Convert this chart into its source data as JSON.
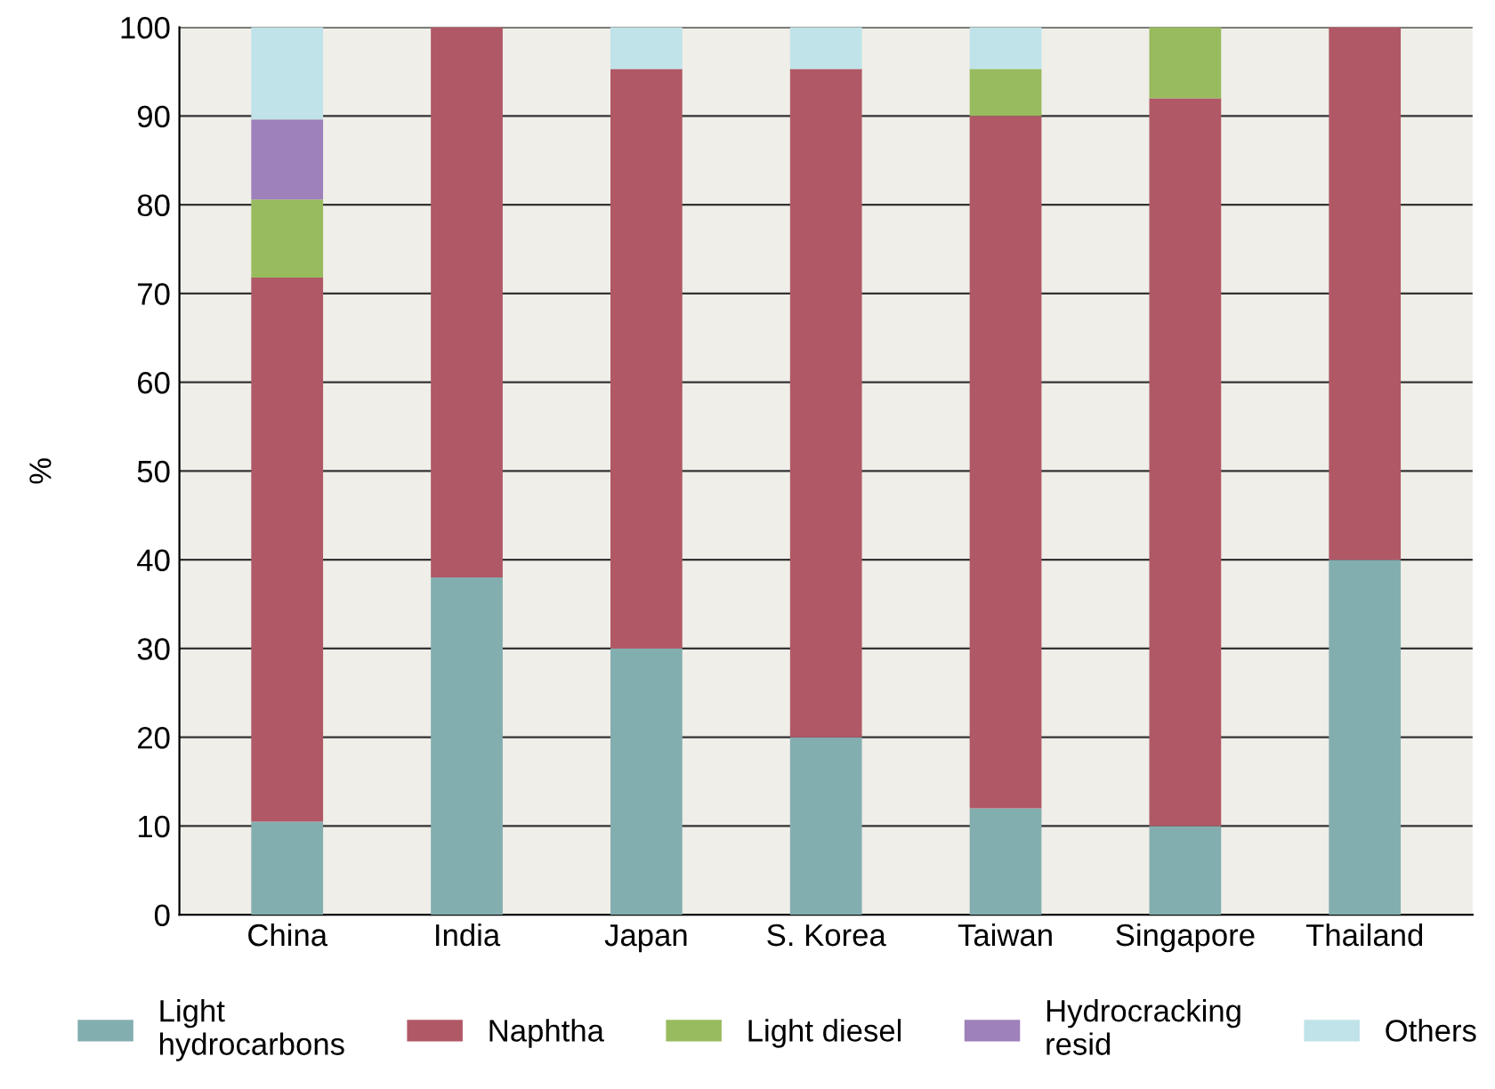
{
  "chart_data": {
    "type": "bar",
    "stacked": true,
    "ylabel": "%",
    "categories": [
      "China",
      "India",
      "Japan",
      "S. Korea",
      "Taiwan",
      "Singapore",
      "Thailand"
    ],
    "series": [
      {
        "name": "Light\nhydrocarbons",
        "color": "#83aeb0",
        "values": [
          10.5,
          38,
          30,
          20,
          12,
          10,
          40
        ]
      },
      {
        "name": "Naphtha",
        "color": "#b05866",
        "values": [
          61.3,
          62,
          65.3,
          75.3,
          78,
          82,
          60
        ]
      },
      {
        "name": "Light diesel",
        "color": "#98bb5e",
        "values": [
          8.8,
          null,
          null,
          null,
          5.3,
          8,
          null
        ]
      },
      {
        "name": "Hydrocracking\nresid",
        "color": "#9e80ba",
        "values": [
          9,
          null,
          null,
          null,
          null,
          null,
          null
        ]
      },
      {
        "name": "Others",
        "color": "#bfe3e8",
        "values": [
          10.4,
          null,
          4.7,
          4.7,
          4.7,
          null,
          null
        ]
      }
    ],
    "ylim": [
      0,
      100
    ],
    "yticks": [
      0,
      10,
      20,
      30,
      40,
      50,
      60,
      70,
      80,
      90,
      100
    ],
    "grid": "y",
    "legend": "bottom"
  }
}
